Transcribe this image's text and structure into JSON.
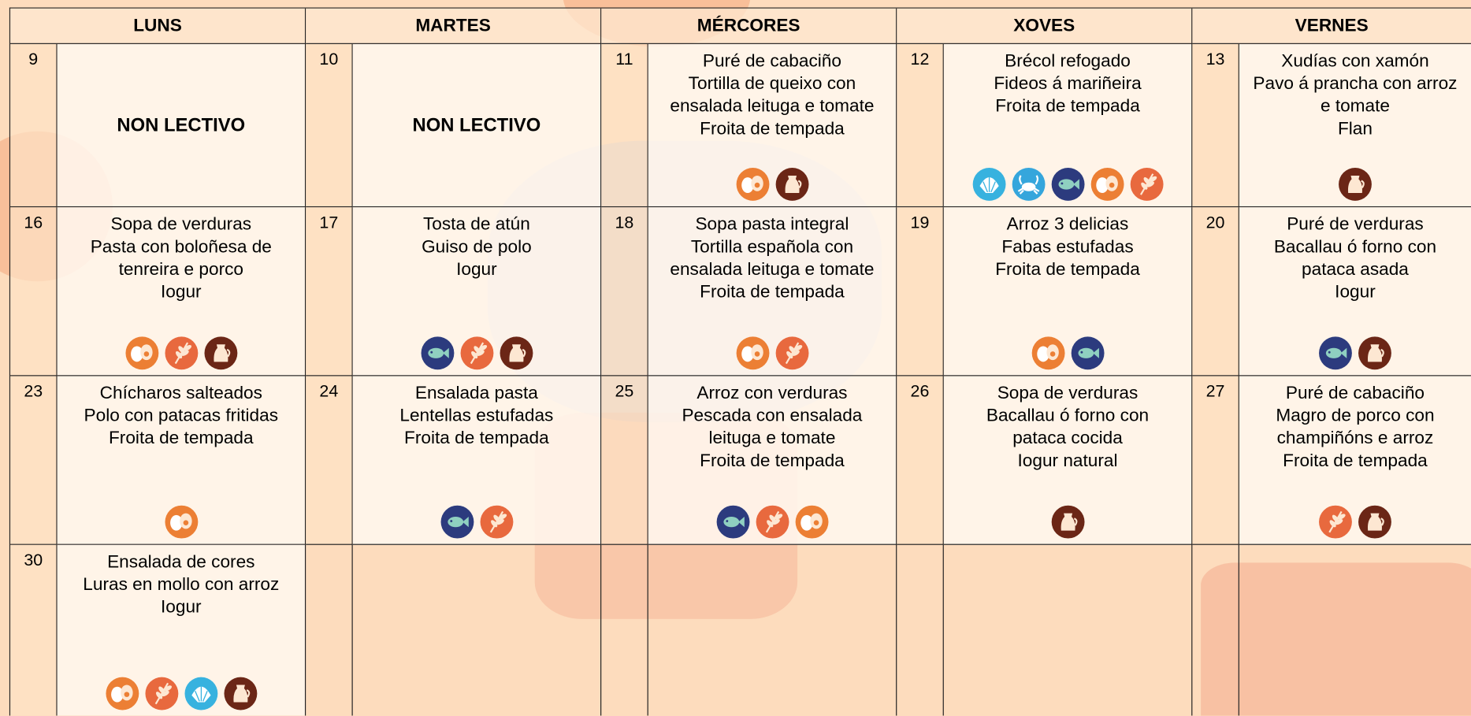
{
  "header": {
    "days": [
      "LUNS",
      "MARTES",
      "MÉRCORES",
      "XOVES",
      "VERNES"
    ]
  },
  "weeks": [
    {
      "days": [
        {
          "number": 9,
          "note": "NON LECTIVO"
        },
        {
          "number": 10,
          "note": "NON LECTIVO"
        },
        {
          "number": 11,
          "menu": [
            "Puré de cabaciño",
            "Tortilla de queixo con",
            "ensalada leituga e tomate",
            "Froita de tempada"
          ]
        },
        {
          "number": 12,
          "menu": [
            "Brécol refogado",
            "Fideos á mariñeira",
            "Froita de tempada"
          ]
        },
        {
          "number": 13,
          "menu": [
            "Xudías con xamón",
            "Pavo á prancha con arroz",
            "e tomate",
            "Flan"
          ]
        }
      ]
    },
    {
      "days": [
        {
          "number": 16,
          "menu": [
            "Sopa de verduras",
            "Pasta con boloñesa de",
            "tenreira e porco",
            "Iogur"
          ]
        },
        {
          "number": 17,
          "menu": [
            "Tosta de atún",
            "Guiso de polo",
            "Iogur"
          ]
        },
        {
          "number": 18,
          "menu": [
            "Sopa pasta integral",
            "Tortilla española con",
            "ensalada leituga e tomate",
            "Froita de tempada"
          ]
        },
        {
          "number": 19,
          "menu": [
            "Arroz 3 delicias",
            "Fabas estufadas",
            "Froita de tempada"
          ]
        },
        {
          "number": 20,
          "menu": [
            "Puré de verduras",
            "Bacallau ó forno con",
            "pataca asada",
            "Iogur"
          ]
        }
      ]
    },
    {
      "days": [
        {
          "number": 23,
          "menu": [
            "Chícharos salteados",
            "Polo con patacas fritidas",
            "Froita de tempada"
          ]
        },
        {
          "number": 24,
          "menu": [
            "Ensalada pasta",
            "Lentellas estufadas",
            "Froita de tempada"
          ]
        },
        {
          "number": 25,
          "menu": [
            "Arroz con verduras",
            "Pescada con ensalada",
            "leituga e tomate",
            "Froita de tempada"
          ]
        },
        {
          "number": 26,
          "menu": [
            "Sopa de verduras",
            "Bacallau ó forno con",
            "pataca cocida",
            "Iogur natural"
          ]
        },
        {
          "number": 27,
          "menu": [
            "Puré de cabaciño",
            "Magro de porco con",
            "champiñóns e arroz",
            "Froita de tempada"
          ]
        }
      ]
    },
    {
      "days": [
        {
          "number": 30,
          "menu": [
            "Ensalada de cores",
            "Luras en mollo con arroz",
            "Iogur"
          ]
        }
      ]
    }
  ]
}
